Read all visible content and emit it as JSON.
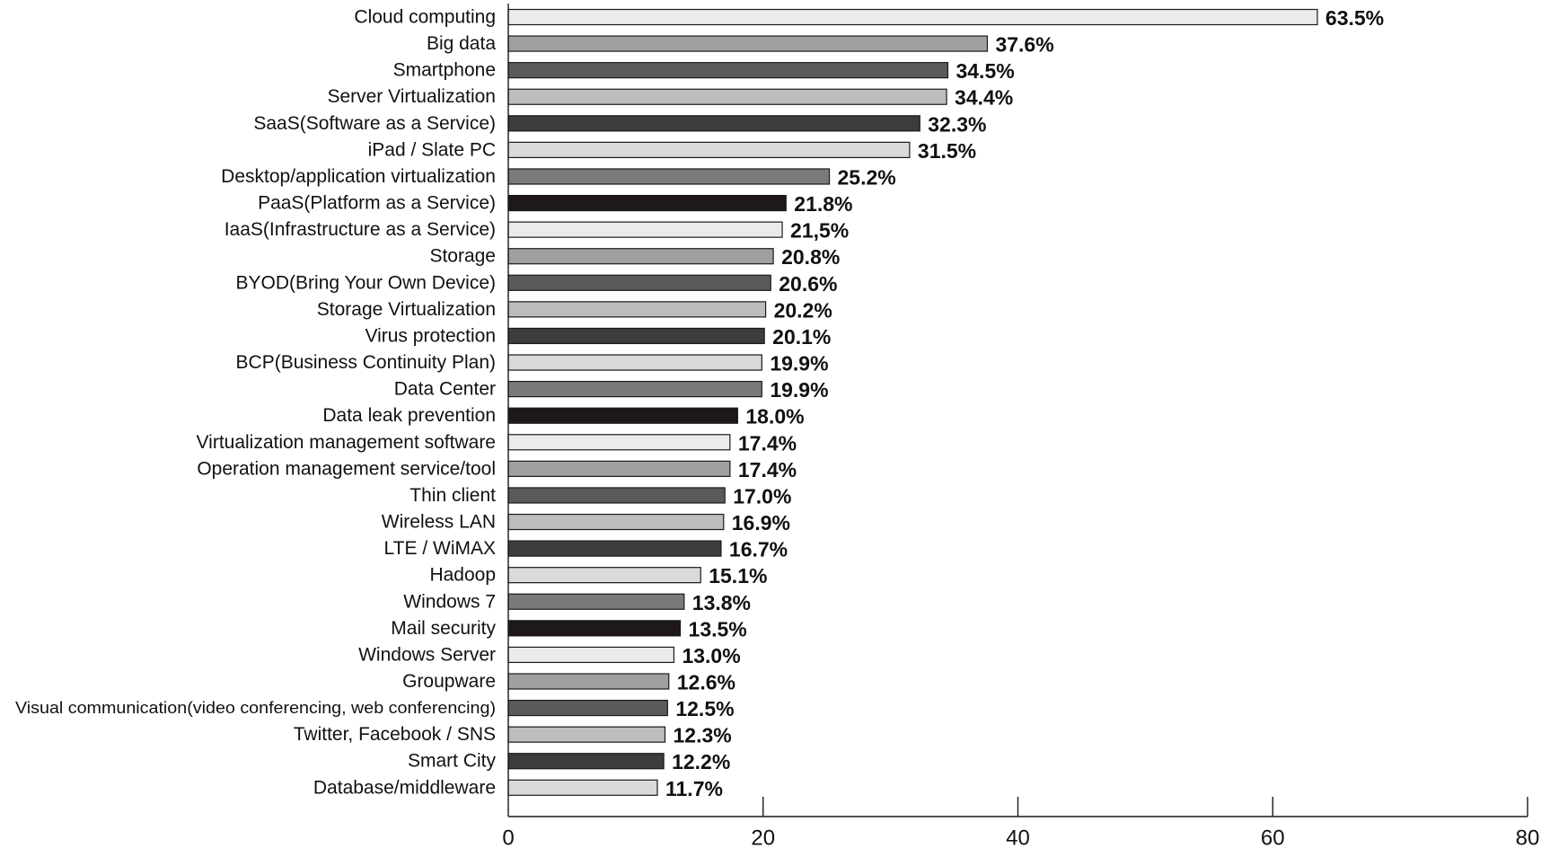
{
  "chart_data": {
    "type": "bar",
    "orientation": "horizontal",
    "title": "",
    "xlabel": "",
    "ylabel": "",
    "xlim": [
      0,
      80
    ],
    "x_ticks": [
      0,
      20,
      40,
      60,
      80
    ],
    "x_tick_labels": [
      "0",
      "20",
      "40",
      "60",
      "80"
    ],
    "grid": false,
    "legend": "none",
    "categories": [
      "Cloud computing",
      "Big data",
      "Smartphone",
      "Server Virtualization",
      "SaaS(Software as a Service)",
      "iPad / Slate PC",
      "Desktop/application virtualization",
      "PaaS(Platform as a Service)",
      "IaaS(Infrastructure as a Service)",
      "Storage",
      "BYOD(Bring Your Own Device)",
      "Storage Virtualization",
      "Virus protection",
      "BCP(Business Continuity Plan)",
      "Data Center",
      "Data leak prevention",
      "Virtualization management software",
      "Operation management service/tool",
      "Thin client",
      "Wireless LAN",
      "LTE / WiMAX",
      "Hadoop",
      "Windows 7",
      "Mail security",
      "Windows Server",
      "Groupware",
      "Visual communication(video conferencing, web conferencing)",
      "Twitter, Facebook / SNS",
      "Smart City",
      "Database/middleware"
    ],
    "values": [
      63.5,
      37.6,
      34.5,
      34.4,
      32.3,
      31.5,
      25.2,
      21.8,
      21.5,
      20.8,
      20.6,
      20.2,
      20.1,
      19.9,
      19.9,
      18.0,
      17.4,
      17.4,
      17.0,
      16.9,
      16.7,
      15.1,
      13.8,
      13.5,
      13.0,
      12.6,
      12.5,
      12.3,
      12.2,
      11.7
    ],
    "value_labels": [
      "63.5%",
      "37.6%",
      "34.5%",
      "34.4%",
      "32.3%",
      "31.5%",
      "25.2%",
      "21.8%",
      "21,5%",
      "20.8%",
      "20.6%",
      "20.2%",
      "20.1%",
      "19.9%",
      "19.9%",
      "18.0%",
      "17.4%",
      "17.4%",
      "17.0%",
      "16.9%",
      "16.7%",
      "15.1%",
      "13.8%",
      "13.5%",
      "13.0%",
      "12.6%",
      "12.5%",
      "12.3%",
      "12.2%",
      "11.7%"
    ],
    "bar_colors": [
      "#ebebeb",
      "#a0a0a0",
      "#5a5a5a",
      "#bdbdbd",
      "#3c3c3c",
      "#dadada",
      "#7a7a7a",
      "#1e1818",
      "#ebebeb",
      "#a0a0a0",
      "#5a5a5a",
      "#bdbdbd",
      "#3c3c3c",
      "#dadada",
      "#7a7a7a",
      "#1e1818",
      "#ebebeb",
      "#a0a0a0",
      "#5a5a5a",
      "#bdbdbd",
      "#3c3c3c",
      "#dadada",
      "#7a7a7a",
      "#1e1818",
      "#ebebeb",
      "#a0a0a0",
      "#5a5a5a",
      "#bdbdbd",
      "#3c3c3c",
      "#dadada"
    ]
  }
}
